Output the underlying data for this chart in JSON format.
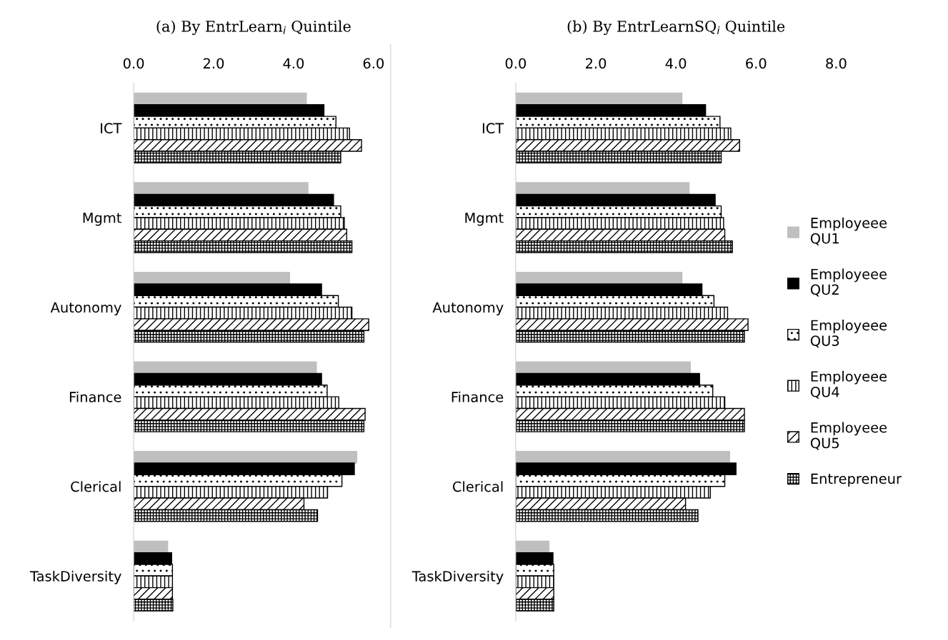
{
  "chart_data": [
    {
      "type": "bar",
      "orientation": "horizontal",
      "title": "(a) By EntrLearn$_{i}$ Quintile",
      "categories": [
        "ICT",
        "Mgmt",
        "Autonomy",
        "Finance",
        "Clerical",
        "TaskDiversity"
      ],
      "xlim": [
        0,
        6
      ],
      "xticks": [
        {
          "value": 0,
          "label": "0.0"
        },
        {
          "value": 2,
          "label": "2.0"
        },
        {
          "value": 4,
          "label": "4.0"
        },
        {
          "value": 6,
          "label": "6.0"
        }
      ],
      "grid": false,
      "series": [
        {
          "color": "#bfbfbf",
          "values": [
            4.32,
            4.36,
            3.9,
            4.57,
            5.58,
            0.85
          ]
        },
        {
          "color": "#000000",
          "values": [
            4.76,
            5.0,
            4.7,
            4.7,
            5.52,
            0.95
          ]
        },
        {
          "color": "#000000",
          "values": [
            5.06,
            5.18,
            5.12,
            4.84,
            5.21,
            0.97
          ]
        },
        {
          "color": "#000000",
          "values": [
            5.4,
            5.27,
            5.46,
            5.13,
            4.85,
            0.97
          ]
        },
        {
          "color": "#000000",
          "values": [
            5.7,
            5.33,
            5.88,
            5.79,
            4.26,
            0.97
          ]
        },
        {
          "color": "#000000",
          "values": [
            5.18,
            5.46,
            5.76,
            5.76,
            4.6,
            0.98
          ]
        }
      ]
    },
    {
      "type": "bar",
      "orientation": "horizontal",
      "title": "(b) By EntrLearnSQ$_{i}$ Quintile",
      "categories": [
        "ICT",
        "Mgmt",
        "Autonomy",
        "Finance",
        "Clerical",
        "TaskDiversity"
      ],
      "xlim": [
        0,
        8
      ],
      "xticks": [
        {
          "value": 0,
          "label": "0.0"
        },
        {
          "value": 2,
          "label": "2.0"
        },
        {
          "value": 4,
          "label": "4.0"
        },
        {
          "value": 6,
          "label": "6.0"
        },
        {
          "value": 8,
          "label": "8.0"
        }
      ],
      "grid": false,
      "legend": "right",
      "series": [
        {
          "name": "Employeee QU1",
          "color": "#bfbfbf",
          "values": [
            4.15,
            4.33,
            4.15,
            4.36,
            5.34,
            0.83
          ]
        },
        {
          "name": "Employeee QU2",
          "color": "#000000",
          "values": [
            4.74,
            4.98,
            4.65,
            4.59,
            5.5,
            0.93
          ]
        },
        {
          "name": "Employeee QU3",
          "color": "#000000",
          "values": [
            5.1,
            5.13,
            4.95,
            4.92,
            5.22,
            0.95
          ]
        },
        {
          "name": "Employeee QU4",
          "color": "#000000",
          "values": [
            5.37,
            5.19,
            5.29,
            5.22,
            4.86,
            0.95
          ]
        },
        {
          "name": "Employeee QU5",
          "color": "#000000",
          "values": [
            5.59,
            5.22,
            5.8,
            5.71,
            4.24,
            0.95
          ]
        },
        {
          "name": "Entrepreneur",
          "color": "#000000",
          "values": [
            5.13,
            5.41,
            5.71,
            5.71,
            4.55,
            0.95
          ]
        }
      ]
    }
  ]
}
